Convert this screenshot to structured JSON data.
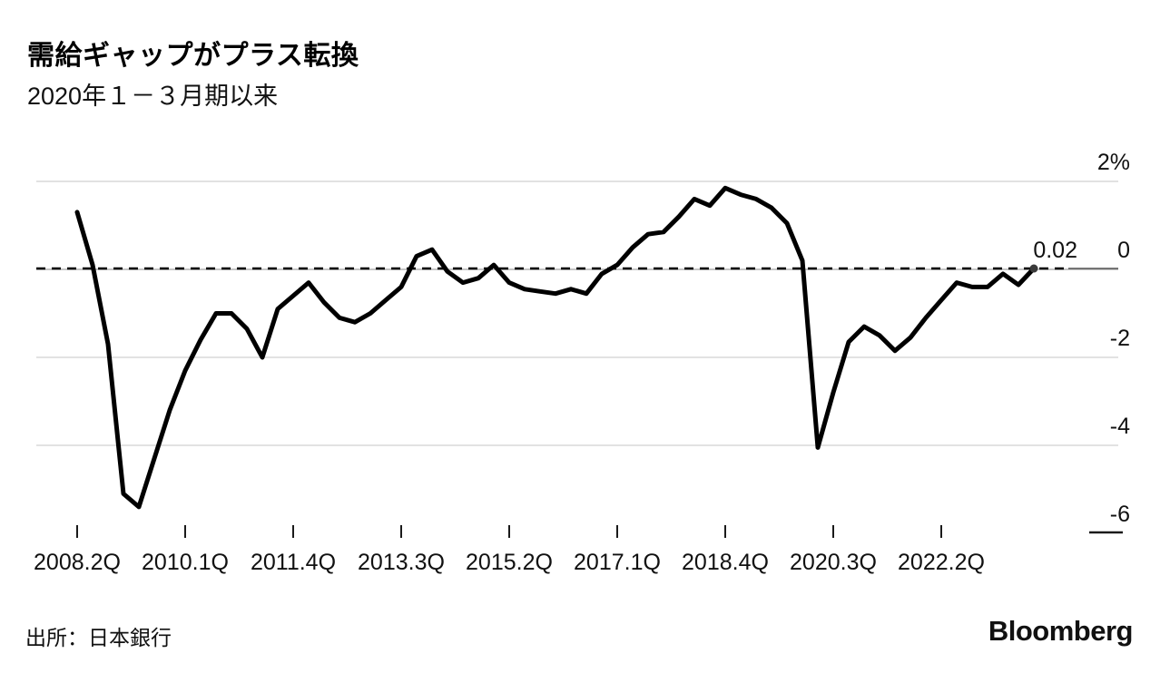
{
  "header": {
    "title": "需給ギャップがプラス転換",
    "subtitle": "2020年１－３月期以来"
  },
  "footer": {
    "source": "出所：日本銀行",
    "brand": "Bloomberg"
  },
  "annotation": {
    "last_value_label": "0.02"
  },
  "chart_data": {
    "type": "line",
    "title": "需給ギャップがプラス転換",
    "unit": "%",
    "ylim": [
      -6.5,
      2
    ],
    "yticks": [
      2,
      0,
      -2,
      -4,
      -6
    ],
    "ytick_labels": [
      "2%",
      "0",
      "-2",
      "-4",
      "-6"
    ],
    "x_tick_indices": [
      0,
      7,
      14,
      21,
      28,
      35,
      42,
      49,
      56
    ],
    "x_tick_labels": [
      "2008.2Q",
      "2010.1Q",
      "2011.4Q",
      "2013.3Q",
      "2015.2Q",
      "2017.1Q",
      "2018.4Q",
      "2020.3Q",
      "2022.2Q"
    ],
    "reference_line": 0.02,
    "line_color": "#000000",
    "grid_color": "#d9d9d9",
    "zero_grid_color": "#b3b3b3",
    "end_dot_color": "#3a3a3a",
    "quarters": [
      "2008Q2",
      "2008Q3",
      "2008Q4",
      "2009Q1",
      "2009Q2",
      "2009Q3",
      "2009Q4",
      "2010Q1",
      "2010Q2",
      "2010Q3",
      "2010Q4",
      "2011Q1",
      "2011Q2",
      "2011Q3",
      "2011Q4",
      "2012Q1",
      "2012Q2",
      "2012Q3",
      "2012Q4",
      "2013Q1",
      "2013Q2",
      "2013Q3",
      "2013Q4",
      "2014Q1",
      "2014Q2",
      "2014Q3",
      "2014Q4",
      "2015Q1",
      "2015Q2",
      "2015Q3",
      "2015Q4",
      "2016Q1",
      "2016Q2",
      "2016Q3",
      "2016Q4",
      "2017Q1",
      "2017Q2",
      "2017Q3",
      "2017Q4",
      "2018Q1",
      "2018Q2",
      "2018Q3",
      "2018Q4",
      "2019Q1",
      "2019Q2",
      "2019Q3",
      "2019Q4",
      "2020Q1",
      "2020Q2",
      "2020Q3",
      "2020Q4",
      "2021Q1",
      "2021Q2",
      "2021Q3",
      "2021Q4",
      "2022Q1",
      "2022Q2",
      "2022Q3",
      "2022Q4",
      "2023Q1",
      "2023Q2",
      "2023Q3",
      "2023Q4"
    ],
    "values": [
      1.3,
      0.1,
      -1.7,
      -5.1,
      -5.4,
      -4.3,
      -3.2,
      -2.3,
      -1.6,
      -1.0,
      -1.0,
      -1.35,
      -2.0,
      -0.9,
      -0.6,
      -0.3,
      -0.75,
      -1.1,
      -1.2,
      -1.0,
      -0.7,
      -0.4,
      0.3,
      0.45,
      -0.05,
      -0.3,
      -0.2,
      0.1,
      -0.3,
      -0.45,
      -0.5,
      -0.55,
      -0.45,
      -0.55,
      -0.1,
      0.1,
      0.5,
      0.8,
      0.85,
      1.2,
      1.6,
      1.45,
      1.85,
      1.7,
      1.6,
      1.4,
      1.05,
      0.2,
      -4.05,
      -2.8,
      -1.65,
      -1.3,
      -1.5,
      -1.85,
      -1.55,
      -1.1,
      -0.7,
      -0.3,
      -0.4,
      -0.4,
      -0.1,
      -0.35,
      0.02
    ]
  }
}
